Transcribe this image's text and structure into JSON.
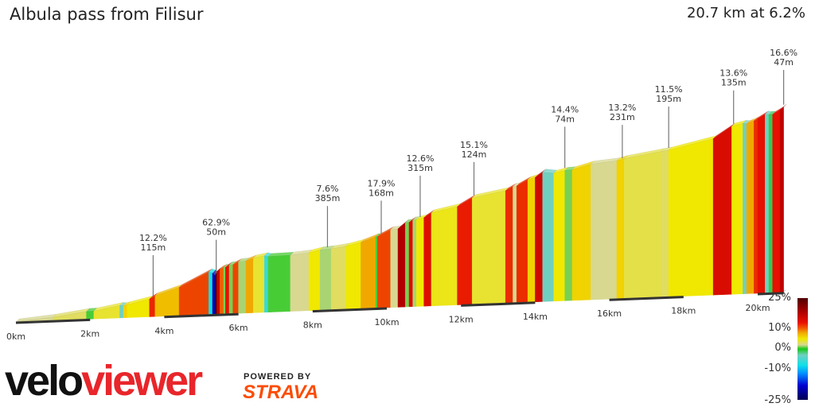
{
  "title": "Albula pass from Filisur",
  "summary": "20.7 km at 6.2%",
  "logo": {
    "velo": "velo",
    "viewer": "viewer",
    "powered_by": "POWERED BY",
    "strava": "STRAVA"
  },
  "chart_data": {
    "type": "area",
    "xlabel": "",
    "ylabel": "",
    "x_ticks": [
      "0km",
      "2km",
      "4km",
      "6km",
      "8km",
      "10km",
      "12km",
      "14km",
      "16km",
      "18km",
      "20km"
    ],
    "x_tick_values": [
      0,
      2,
      4,
      6,
      8,
      10,
      12,
      14,
      16,
      18,
      20
    ],
    "xlim": [
      0,
      20.7
    ],
    "total_distance_km": 20.7,
    "average_gradient_pct": 6.2,
    "segments": [
      [
        0,
        1,
        2
      ],
      [
        1,
        1.9,
        3
      ],
      [
        1.9,
        2.1,
        0.5
      ],
      [
        2.1,
        2.8,
        4
      ],
      [
        2.8,
        2.9,
        -3
      ],
      [
        2.9,
        3.0,
        6
      ],
      [
        3.0,
        3.6,
        5
      ],
      [
        3.6,
        3.75,
        12.2
      ],
      [
        3.75,
        4.4,
        7
      ],
      [
        4.4,
        5.2,
        11
      ],
      [
        5.2,
        5.3,
        -8
      ],
      [
        5.3,
        5.38,
        -20
      ],
      [
        5.38,
        5.42,
        62.9
      ],
      [
        5.42,
        5.5,
        16
      ],
      [
        5.5,
        5.6,
        10
      ],
      [
        5.6,
        5.65,
        1
      ],
      [
        5.65,
        5.75,
        13
      ],
      [
        5.75,
        5.85,
        1
      ],
      [
        5.85,
        6.0,
        11
      ],
      [
        6.0,
        6.2,
        1.5
      ],
      [
        6.2,
        6.4,
        8
      ],
      [
        6.4,
        6.7,
        4
      ],
      [
        6.7,
        6.8,
        -6
      ],
      [
        6.8,
        7.4,
        0.5
      ],
      [
        7.4,
        7.9,
        2
      ],
      [
        7.9,
        8.2,
        5
      ],
      [
        8.2,
        8.5,
        1.5
      ],
      [
        8.5,
        8.9,
        3
      ],
      [
        8.9,
        9.3,
        5
      ],
      [
        9.3,
        9.7,
        8
      ],
      [
        9.7,
        9.75,
        0.5
      ],
      [
        9.75,
        10.1,
        11
      ],
      [
        10.1,
        10.3,
        2
      ],
      [
        10.3,
        10.5,
        17.9
      ],
      [
        10.5,
        10.6,
        1
      ],
      [
        10.6,
        10.7,
        14
      ],
      [
        10.7,
        10.8,
        1.5
      ],
      [
        10.8,
        11.0,
        5
      ],
      [
        11.0,
        11.2,
        14
      ],
      [
        11.2,
        11.9,
        4.5
      ],
      [
        11.9,
        12.3,
        12.6
      ],
      [
        12.3,
        13.2,
        4
      ],
      [
        13.2,
        13.4,
        12
      ],
      [
        13.4,
        13.5,
        2
      ],
      [
        13.5,
        13.8,
        12
      ],
      [
        13.8,
        14.0,
        6
      ],
      [
        14.0,
        14.2,
        15.1
      ],
      [
        14.2,
        14.5,
        -3
      ],
      [
        14.5,
        14.8,
        5
      ],
      [
        14.8,
        15.0,
        1
      ],
      [
        15.0,
        15.5,
        6
      ],
      [
        15.5,
        16.2,
        2
      ],
      [
        16.2,
        16.4,
        6
      ],
      [
        16.4,
        17.4,
        3.5
      ],
      [
        17.4,
        17.6,
        3
      ],
      [
        17.6,
        18.8,
        5
      ],
      [
        18.8,
        19.3,
        14.4
      ],
      [
        19.3,
        19.6,
        5
      ],
      [
        19.6,
        19.7,
        -3
      ],
      [
        19.7,
        19.9,
        8
      ],
      [
        19.9,
        20.0,
        12
      ],
      [
        20.0,
        20.2,
        13.2
      ],
      [
        20.2,
        20.3,
        -3
      ],
      [
        20.3,
        20.4,
        -1
      ],
      [
        20.4,
        20.6,
        13
      ],
      [
        20.6,
        20.7,
        16.6
      ]
    ],
    "annotations": [
      {
        "km": 3.7,
        "gradient": "12.2%",
        "length": "115m"
      },
      {
        "km": 5.4,
        "gradient": "62.9%",
        "length": "50m"
      },
      {
        "km": 8.4,
        "gradient": "7.6%",
        "length": "385m"
      },
      {
        "km": 9.85,
        "gradient": "17.9%",
        "length": "168m"
      },
      {
        "km": 10.9,
        "gradient": "12.6%",
        "length": "315m"
      },
      {
        "km": 12.35,
        "gradient": "15.1%",
        "length": "124m"
      },
      {
        "km": 14.8,
        "gradient": "14.4%",
        "length": "74m"
      },
      {
        "km": 16.35,
        "gradient": "13.2%",
        "length": "231m"
      },
      {
        "km": 17.6,
        "gradient": "11.5%",
        "length": "195m"
      },
      {
        "km": 19.35,
        "gradient": "13.6%",
        "length": "135m"
      },
      {
        "km": 20.7,
        "gradient": "16.6%",
        "length": "47m"
      }
    ],
    "legend": {
      "labels": [
        "25%",
        "10%",
        "0%",
        "-10%",
        "-25%"
      ],
      "values": [
        25,
        10,
        0,
        -10,
        -25
      ],
      "placement": "bottom-right",
      "colors": [
        [
          -25,
          "#000050"
        ],
        [
          -18,
          "#0000d0"
        ],
        [
          -12,
          "#0090ff"
        ],
        [
          -8,
          "#10e0e8"
        ],
        [
          -3,
          "#70d0c0"
        ],
        [
          0,
          "#18c818"
        ],
        [
          2,
          "#d8d890"
        ],
        [
          5,
          "#f0e800"
        ],
        [
          8,
          "#f0a800"
        ],
        [
          10,
          "#f06000"
        ],
        [
          13,
          "#e81000"
        ],
        [
          18,
          "#b00000"
        ],
        [
          25,
          "#500000"
        ]
      ]
    }
  }
}
